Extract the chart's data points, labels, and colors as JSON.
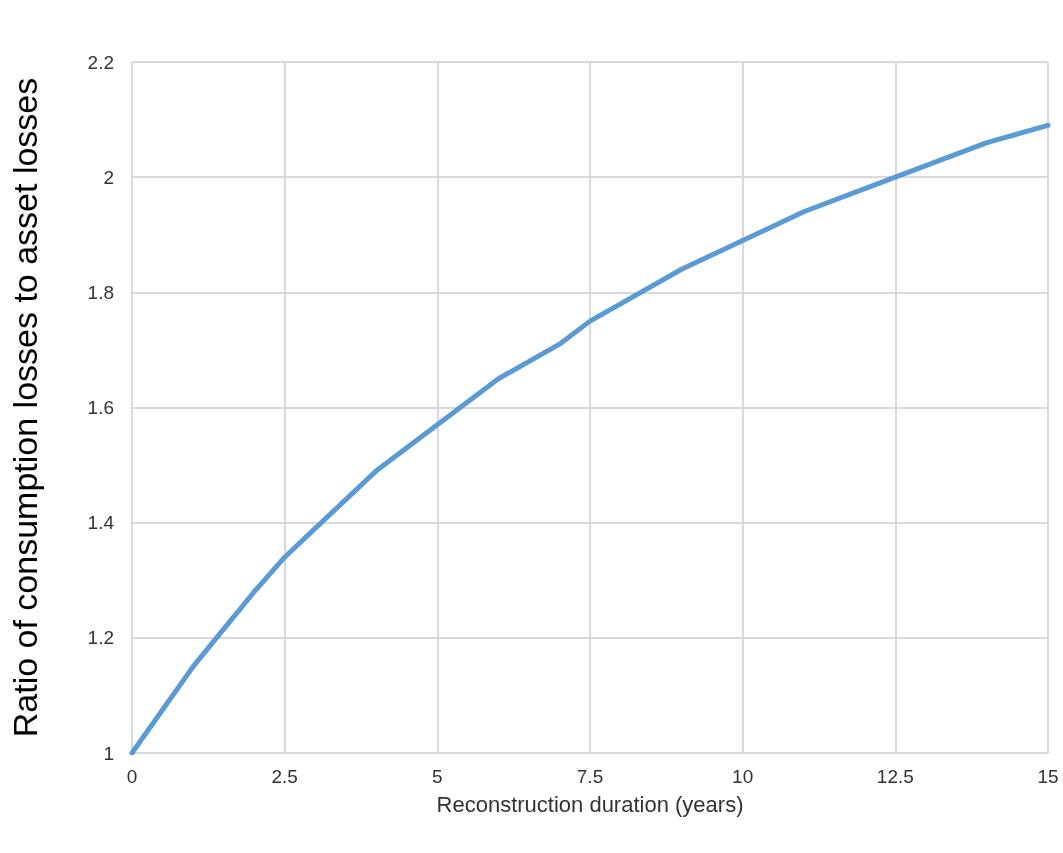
{
  "chart_data": {
    "type": "line",
    "xlabel": "Reconstruction duration (years)",
    "ylabel": "Ratio of consumption losses to asset losses",
    "x": [
      0,
      1,
      2,
      2.5,
      3,
      4,
      5,
      6,
      7,
      7.5,
      8,
      9,
      10,
      11,
      12,
      12.5,
      13,
      14,
      15
    ],
    "series": [
      {
        "color": "#5b9bd5",
        "values": [
          1,
          1.15,
          1.28,
          1.34,
          1.39,
          1.49,
          1.57,
          1.65,
          1.71,
          1.75,
          1.78,
          1.84,
          1.89,
          1.94,
          1.98,
          2.0,
          2.02,
          2.06,
          2.09
        ]
      }
    ],
    "xlim": [
      0,
      15
    ],
    "xticks": [
      0,
      2.5,
      5,
      7.5,
      10,
      12.5,
      15
    ],
    "ylim": [
      1,
      2.2
    ],
    "yticks": [
      1,
      1.2,
      1.4,
      1.6,
      1.8,
      2,
      2.2
    ],
    "grid": true,
    "marker": "none",
    "line_style": "solid"
  }
}
